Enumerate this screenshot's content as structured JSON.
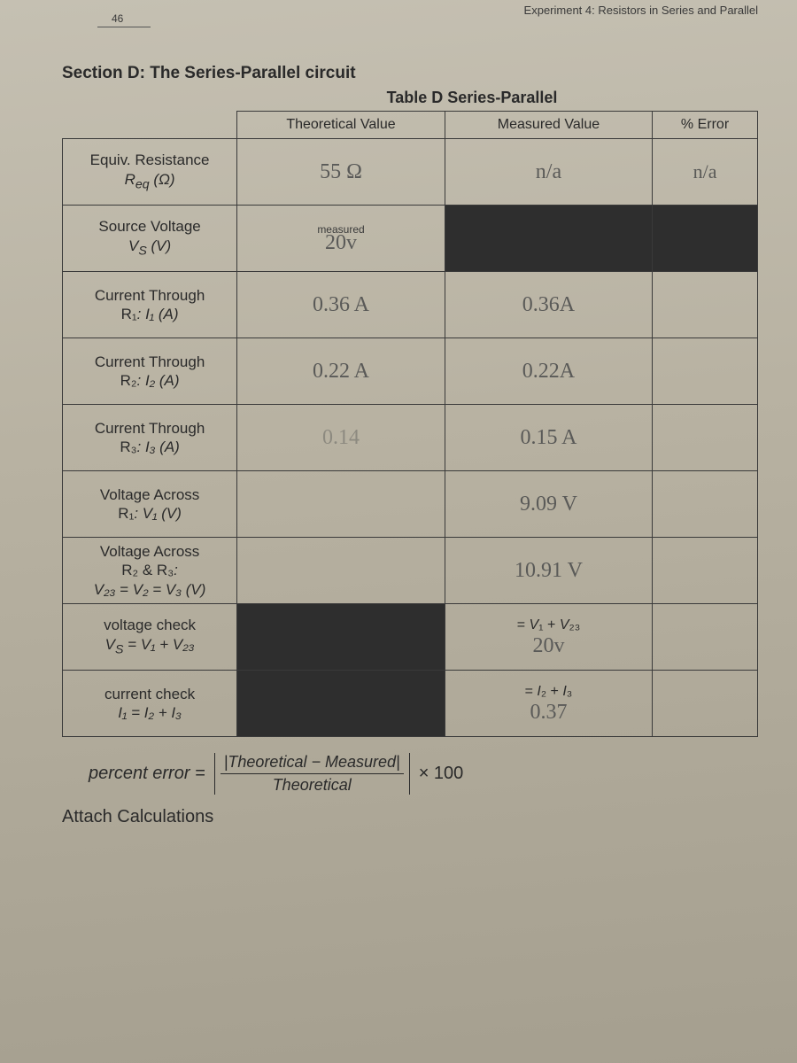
{
  "header": {
    "experiment": "Experiment 4:  Resistors in Series and Parallel",
    "page_number": "46",
    "section_title": "Section D:  The Series-Parallel circuit",
    "table_title": "Table D Series-Parallel"
  },
  "columns": {
    "theoretical": "Theoretical Value",
    "measured": "Measured Value",
    "error": "% Error"
  },
  "rows": {
    "req": {
      "label_main": "Equiv. Resistance",
      "label_sub": "R_eq (Ω)",
      "theoretical": "55 Ω",
      "measured": "n/a",
      "error": "n/a"
    },
    "vs": {
      "label_main": "Source Voltage",
      "label_sub": "V_S (V)",
      "measured_tag": "measured",
      "theoretical": "20v"
    },
    "i1": {
      "label_main": "Current Through",
      "label_sub": "R₁:  I₁ (A)",
      "theoretical": "0.36 A",
      "measured": "0.36A",
      "error": ""
    },
    "i2": {
      "label_main": "Current Through",
      "label_sub": "R₂:  I₂ (A)",
      "theoretical": "0.22 A",
      "measured": "0.22A",
      "error": ""
    },
    "i3": {
      "label_main": "Current Through",
      "label_sub": "R₃:  I₃ (A)",
      "theoretical": "0.14",
      "measured": "0.15 A",
      "error": ""
    },
    "v1": {
      "label_main": "Voltage Across",
      "label_sub": "R₁:  V₁ (V)",
      "theoretical": "",
      "measured": "9.09 V",
      "error": ""
    },
    "v23": {
      "label_main": "Voltage Across",
      "label_sub_line1": "R₂ & R₃:",
      "label_sub_line2": "V₂₃ = V₂ = V₃ (V)",
      "theoretical": "",
      "measured": "10.91 V",
      "error": ""
    },
    "vcheck": {
      "label_main": "voltage check",
      "label_sub": "V_S = V₁ + V₂₃",
      "printed": "= V₁ + V₂₃",
      "measured": "20v",
      "error": ""
    },
    "icheck": {
      "label_main": "current check",
      "label_sub": "I₁ = I₂ + I₃",
      "printed": "= I₂ + I₃",
      "measured": "0.37",
      "error": ""
    }
  },
  "formula": {
    "lhs": "percent error =",
    "num": "|Theoretical − Measured|",
    "den": "Theoretical",
    "rhs": "× 100"
  },
  "footer": {
    "attach": "Attach Calculations"
  },
  "style": {
    "handwriting_color": "#5a5a58",
    "border_color": "#3a3a3a",
    "background": "#b8b2a2"
  }
}
